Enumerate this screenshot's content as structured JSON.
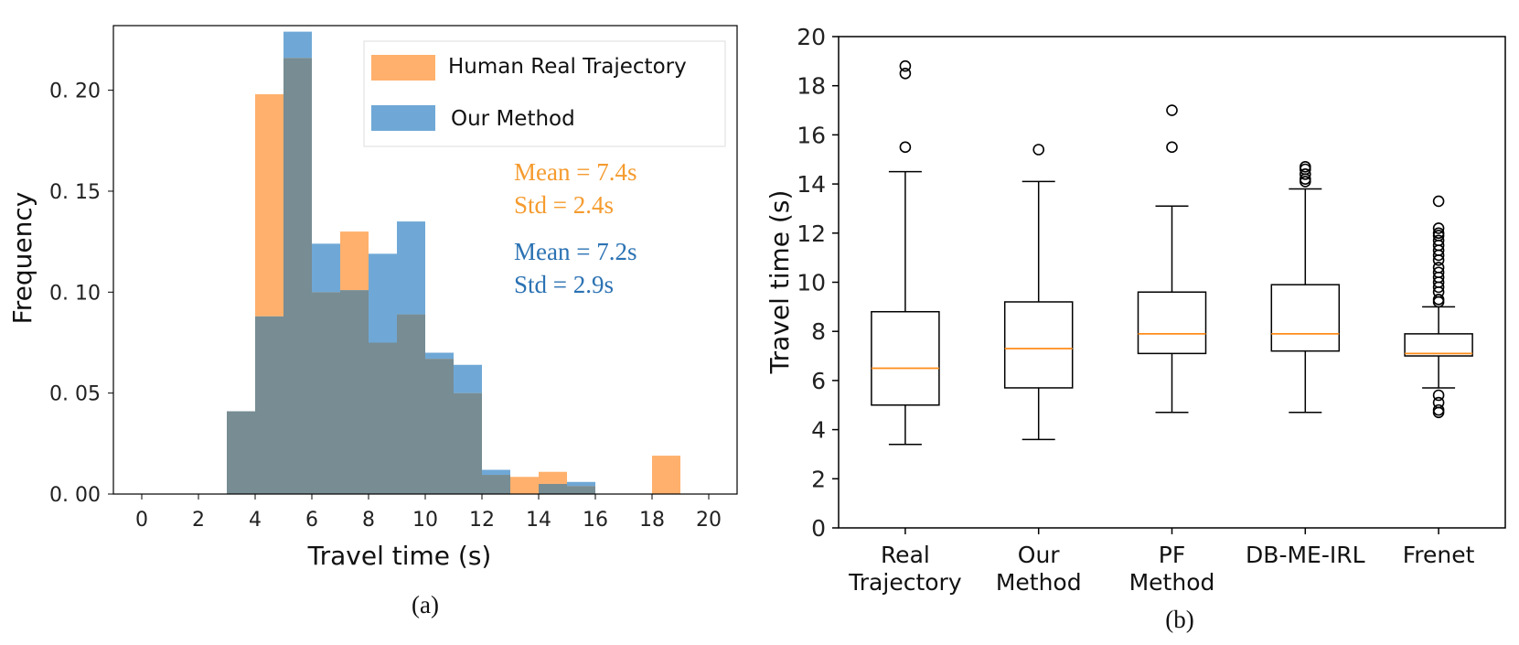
{
  "colors": {
    "orange": "#FFB06C",
    "blue": "#6FA8D6",
    "overlap": "#778C93",
    "orange_text": "#F59B2E",
    "blue_text": "#2B72B3",
    "median": "#FF8C1A",
    "axis": "#000000"
  },
  "chart_data": [
    {
      "type": "bar",
      "subtype": "overlapping-histogram",
      "caption": "(a)",
      "xlabel": "Travel  time (s)",
      "ylabel": "Frequency",
      "xlim": [
        -1,
        21
      ],
      "ylim": [
        0,
        0.232
      ],
      "xticks": [
        0,
        2,
        4,
        6,
        8,
        10,
        12,
        14,
        16,
        18,
        20
      ],
      "yticks": [
        0.0,
        0.05,
        0.1,
        0.15,
        0.2
      ],
      "ytick_labels": [
        "0. 00",
        "0. 05",
        "0. 10",
        "0. 15",
        "0. 20"
      ],
      "bin_width": 1,
      "bin_starts": [
        3,
        4,
        5,
        6,
        7,
        8,
        9,
        10,
        11,
        12,
        13,
        14,
        15,
        16,
        17,
        18
      ],
      "legend": {
        "placement": "top-right",
        "entries": [
          "Human Real Trajectory",
          "Our Method"
        ]
      },
      "series": [
        {
          "name": "Human Real Trajectory",
          "values": [
            0.041,
            0.198,
            0.216,
            0.1,
            0.13,
            0.075,
            0.089,
            0.067,
            0.05,
            0.0095,
            0.0085,
            0.011,
            0.004,
            0,
            0,
            0.019
          ]
        },
        {
          "name": "Our Method",
          "values": [
            0.041,
            0.088,
            0.229,
            0.124,
            0.101,
            0.119,
            0.135,
            0.07,
            0.064,
            0.012,
            0.0,
            0.005,
            0.006,
            0,
            0,
            0.0
          ]
        }
      ],
      "annotations": [
        {
          "series": "Human Real Trajectory",
          "lines": [
            "Mean = 7.4s",
            "Std = 2.4s"
          ]
        },
        {
          "series": "Our Method",
          "lines": [
            "Mean = 7.2s",
            "Std = 2.9s"
          ]
        }
      ]
    },
    {
      "type": "box",
      "caption": "(b)",
      "xlabel": "",
      "ylabel": "Travel  time (s)",
      "ylim": [
        0,
        20
      ],
      "yticks": [
        0,
        2,
        4,
        6,
        8,
        10,
        12,
        14,
        16,
        18,
        20
      ],
      "categories": [
        {
          "line1": "Real",
          "line2": "Trajectory"
        },
        {
          "line1": "Our",
          "line2": "Method"
        },
        {
          "line1": "PF",
          "line2": "Method"
        },
        {
          "line1": "DB-ME-IRL",
          "line2": ""
        },
        {
          "line1": "Frenet",
          "line2": ""
        }
      ],
      "boxes": [
        {
          "whislo": 3.4,
          "q1": 5.0,
          "median": 6.5,
          "q3": 8.8,
          "whishi": 14.5,
          "fliers": [
            15.5,
            18.5,
            18.8
          ]
        },
        {
          "whislo": 3.6,
          "q1": 5.7,
          "median": 7.3,
          "q3": 9.2,
          "whishi": 14.1,
          "fliers": [
            15.4
          ]
        },
        {
          "whislo": 4.7,
          "q1": 7.1,
          "median": 7.9,
          "q3": 9.6,
          "whishi": 13.1,
          "fliers": [
            15.5,
            17.0
          ]
        },
        {
          "whislo": 4.7,
          "q1": 7.2,
          "median": 7.9,
          "q3": 9.9,
          "whishi": 13.8,
          "fliers": [
            14.1,
            14.2,
            14.4,
            14.6,
            14.7
          ]
        },
        {
          "whislo": 5.7,
          "q1": 7.0,
          "median": 7.1,
          "q3": 7.9,
          "whishi": 9.0,
          "fliers": [
            4.7,
            4.8,
            5.1,
            5.4,
            9.2,
            9.3,
            9.6,
            9.8,
            10.0,
            10.2,
            10.4,
            10.6,
            10.9,
            11.1,
            11.3,
            11.5,
            11.7,
            11.9,
            12.0,
            12.2,
            13.3
          ]
        }
      ]
    }
  ]
}
